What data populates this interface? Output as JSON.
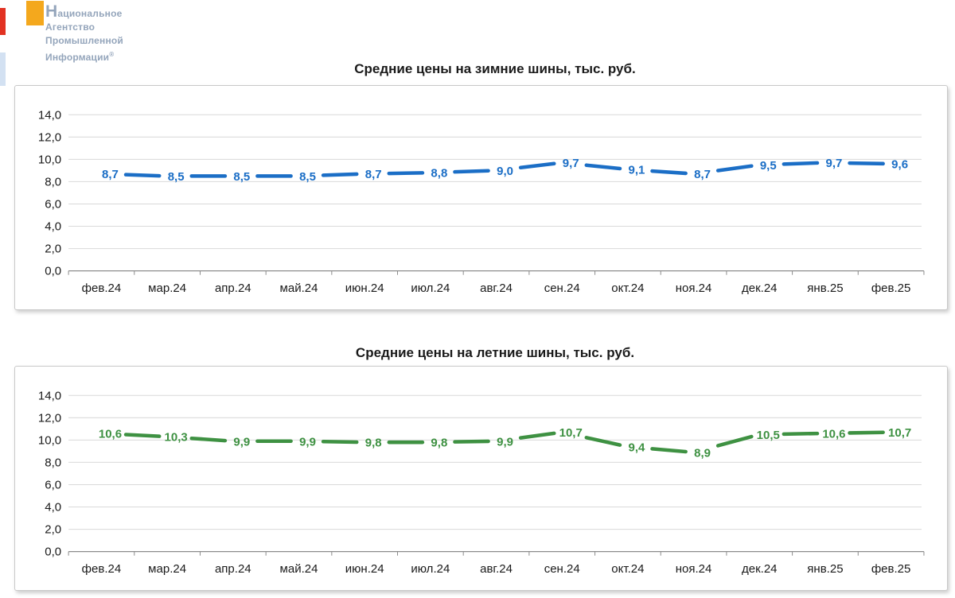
{
  "logo": {
    "line1": "Национальное",
    "line2": "Агентство",
    "line3": "Промышленной",
    "line4": "Информации",
    "reg": "®"
  },
  "chart_data": [
    {
      "type": "line",
      "title": "Средние цены на зимние шины, тыс. руб.",
      "series_name": "Средние цены на зимние шины",
      "categories": [
        "фев.24",
        "мар.24",
        "апр.24",
        "май.24",
        "июн.24",
        "июл.24",
        "авг.24",
        "сен.24",
        "окт.24",
        "ноя.24",
        "дек.24",
        "янв.25",
        "фев.25"
      ],
      "values": [
        8.7,
        8.5,
        8.5,
        8.5,
        8.7,
        8.8,
        9.0,
        9.7,
        9.1,
        8.7,
        9.5,
        9.7,
        9.6
      ],
      "value_labels": [
        "8,7",
        "8,5",
        "8,5",
        "8,5",
        "8,7",
        "8,8",
        "9,0",
        "9,7",
        "9,1",
        "8,7",
        "9,5",
        "9,7",
        "9,6"
      ],
      "ylim": [
        0,
        14
      ],
      "ytick_step": 2,
      "ytick_labels": [
        "0,0",
        "2,0",
        "4,0",
        "6,0",
        "8,0",
        "10,0",
        "12,0",
        "14,0"
      ],
      "line_color": "#1b6ec6",
      "grid_color": "#d9d9d9",
      "axis_color": "#8c8c8c",
      "tick_text_color": "#1a1a1a",
      "grid": true,
      "legend": "none",
      "line_style": "dashed"
    },
    {
      "type": "line",
      "title": "Средние цены на летние шины, тыс. руб.",
      "series_name": "Средние цены на летние шины",
      "categories": [
        "фев.24",
        "мар.24",
        "апр.24",
        "май.24",
        "июн.24",
        "июл.24",
        "авг.24",
        "сен.24",
        "окт.24",
        "ноя.24",
        "дек.24",
        "янв.25",
        "фев.25"
      ],
      "values": [
        10.6,
        10.3,
        9.9,
        9.9,
        9.8,
        9.8,
        9.9,
        10.7,
        9.4,
        8.9,
        10.5,
        10.6,
        10.7
      ],
      "value_labels": [
        "10,6",
        "10,3",
        "9,9",
        "9,9",
        "9,8",
        "9,8",
        "9,9",
        "10,7",
        "9,4",
        "8,9",
        "10,5",
        "10,6",
        "10,7"
      ],
      "ylim": [
        0,
        14
      ],
      "ytick_step": 2,
      "ytick_labels": [
        "0,0",
        "2,0",
        "4,0",
        "6,0",
        "8,0",
        "10,0",
        "12,0",
        "14,0"
      ],
      "line_color": "#3e9142",
      "grid_color": "#d9d9d9",
      "axis_color": "#8c8c8c",
      "tick_text_color": "#1a1a1a",
      "grid": true,
      "legend": "none",
      "line_style": "dashed"
    }
  ]
}
